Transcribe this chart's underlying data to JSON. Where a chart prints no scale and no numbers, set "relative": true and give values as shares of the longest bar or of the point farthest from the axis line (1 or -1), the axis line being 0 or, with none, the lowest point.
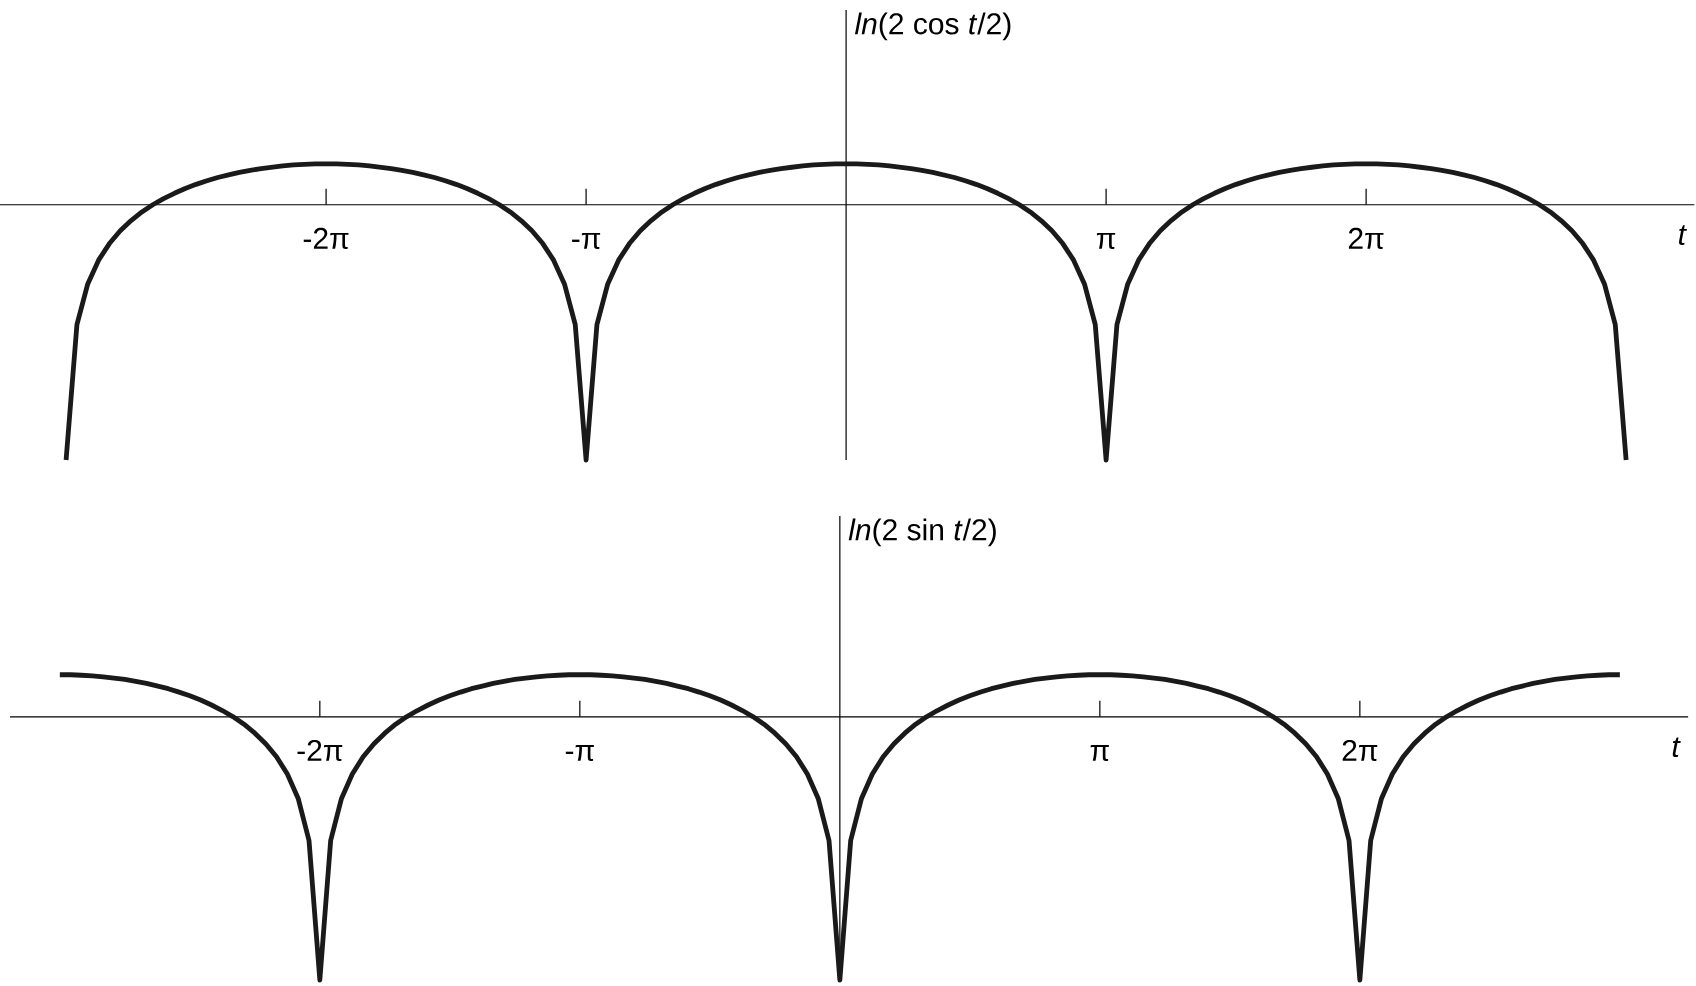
{
  "chart_data": [
    {
      "type": "line",
      "relative": true,
      "xlabel": "t",
      "ylabel": "*ln*(2 cos *t*/2)",
      "color": "#1a1a1a",
      "categories": [
        null,
        null,
        null,
        null,
        null,
        null,
        null,
        null,
        null,
        null,
        null,
        null,
        null,
        null,
        null,
        null,
        null,
        null,
        null,
        null,
        null,
        null,
        null,
        null,
        "-2π",
        null,
        null,
        null,
        null,
        null,
        null,
        null,
        null,
        null,
        null,
        null,
        null,
        null,
        null,
        null,
        null,
        null,
        null,
        null,
        null,
        null,
        null,
        null,
        "-π",
        null,
        null,
        null,
        null,
        null,
        null,
        null,
        null,
        null,
        null,
        null,
        null,
        null,
        null,
        null,
        null,
        null,
        null,
        null,
        null,
        null,
        null,
        null,
        null,
        null,
        null,
        null,
        null,
        null,
        null,
        null,
        null,
        null,
        null,
        null,
        null,
        null,
        null,
        null,
        null,
        null,
        null,
        null,
        null,
        null,
        null,
        null,
        "π",
        null,
        null,
        null,
        null,
        null,
        null,
        null,
        null,
        null,
        null,
        null,
        null,
        null,
        null,
        null,
        null,
        null,
        null,
        null,
        null,
        null,
        null,
        null,
        "2π",
        null,
        null,
        null,
        null,
        null,
        null,
        null,
        null,
        null,
        null,
        null,
        null,
        null,
        null,
        null,
        null,
        null,
        null,
        null,
        null,
        null,
        null,
        null,
        null
      ],
      "values": [
        -1,
        -0.47,
        -0.31,
        -0.217,
        -0.152,
        -0.102,
        -0.062,
        -0.028,
        0,
        0.024,
        0.045,
        0.064,
        0.08,
        0.094,
        0.107,
        0.117,
        0.127,
        0.135,
        0.142,
        0.147,
        0.152,
        0.156,
        0.158,
        0.16,
        0.16,
        0.16,
        0.158,
        0.156,
        0.152,
        0.147,
        0.142,
        0.135,
        0.127,
        0.117,
        0.107,
        0.094,
        0.08,
        0.064,
        0.045,
        0.024,
        0,
        -0.028,
        -0.062,
        -0.102,
        -0.152,
        -0.217,
        -0.31,
        -0.47,
        -1,
        -0.47,
        -0.31,
        -0.217,
        -0.152,
        -0.102,
        -0.062,
        -0.028,
        0,
        0.024,
        0.045,
        0.064,
        0.08,
        0.094,
        0.107,
        0.117,
        0.127,
        0.135,
        0.142,
        0.147,
        0.152,
        0.156,
        0.158,
        0.16,
        0.16,
        0.16,
        0.158,
        0.156,
        0.152,
        0.147,
        0.142,
        0.135,
        0.127,
        0.117,
        0.107,
        0.094,
        0.08,
        0.064,
        0.045,
        0.024,
        0,
        -0.028,
        -0.062,
        -0.102,
        -0.152,
        -0.217,
        -0.31,
        -0.47,
        -1,
        -0.47,
        -0.31,
        -0.217,
        -0.152,
        -0.102,
        -0.062,
        -0.028,
        0,
        0.024,
        0.045,
        0.064,
        0.08,
        0.094,
        0.107,
        0.117,
        0.127,
        0.135,
        0.142,
        0.147,
        0.152,
        0.156,
        0.158,
        0.16,
        0.16,
        0.16,
        0.158,
        0.156,
        0.152,
        0.147,
        0.142,
        0.135,
        0.127,
        0.117,
        0.107,
        0.094,
        0.08,
        0.064,
        0.045,
        0.024,
        0,
        -0.028,
        -0.062,
        -0.102,
        -0.152,
        -0.217,
        -0.31,
        -0.47,
        -1
      ]
    },
    {
      "type": "line",
      "relative": true,
      "xlabel": "t",
      "ylabel": "*ln*(2 sin *t*/2)",
      "color": "#1a1a1a",
      "categories": [
        null,
        null,
        null,
        null,
        null,
        null,
        null,
        null,
        null,
        null,
        null,
        null,
        null,
        null,
        null,
        null,
        null,
        null,
        null,
        null,
        null,
        null,
        null,
        null,
        "-2π",
        null,
        null,
        null,
        null,
        null,
        null,
        null,
        null,
        null,
        null,
        null,
        null,
        null,
        null,
        null,
        null,
        null,
        null,
        null,
        null,
        null,
        null,
        null,
        "-π",
        null,
        null,
        null,
        null,
        null,
        null,
        null,
        null,
        null,
        null,
        null,
        null,
        null,
        null,
        null,
        null,
        null,
        null,
        null,
        null,
        null,
        null,
        null,
        null,
        null,
        null,
        null,
        null,
        null,
        null,
        null,
        null,
        null,
        null,
        null,
        null,
        null,
        null,
        null,
        null,
        null,
        null,
        null,
        null,
        null,
        null,
        null,
        "π",
        null,
        null,
        null,
        null,
        null,
        null,
        null,
        null,
        null,
        null,
        null,
        null,
        null,
        null,
        null,
        null,
        null,
        null,
        null,
        null,
        null,
        null,
        null,
        "2π",
        null,
        null,
        null,
        null,
        null,
        null,
        null,
        null,
        null,
        null,
        null,
        null,
        null,
        null,
        null,
        null,
        null,
        null,
        null,
        null,
        null,
        null,
        null,
        null
      ],
      "values": [
        0.16,
        0.16,
        0.158,
        0.156,
        0.152,
        0.147,
        0.142,
        0.135,
        0.127,
        0.117,
        0.107,
        0.094,
        0.08,
        0.064,
        0.045,
        0.024,
        0,
        -0.028,
        -0.062,
        -0.102,
        -0.152,
        -0.217,
        -0.31,
        -0.47,
        -1,
        -0.47,
        -0.31,
        -0.217,
        -0.152,
        -0.102,
        -0.062,
        -0.028,
        0,
        0.024,
        0.045,
        0.064,
        0.08,
        0.094,
        0.107,
        0.117,
        0.127,
        0.135,
        0.142,
        0.147,
        0.152,
        0.156,
        0.158,
        0.16,
        0.16,
        0.16,
        0.158,
        0.156,
        0.152,
        0.147,
        0.142,
        0.135,
        0.127,
        0.117,
        0.107,
        0.094,
        0.08,
        0.064,
        0.045,
        0.024,
        0,
        -0.028,
        -0.062,
        -0.102,
        -0.152,
        -0.217,
        -0.31,
        -0.47,
        -1,
        -0.47,
        -0.31,
        -0.217,
        -0.152,
        -0.102,
        -0.062,
        -0.028,
        0,
        0.024,
        0.045,
        0.064,
        0.08,
        0.094,
        0.107,
        0.117,
        0.127,
        0.135,
        0.142,
        0.147,
        0.152,
        0.156,
        0.158,
        0.16,
        0.16,
        0.16,
        0.158,
        0.156,
        0.152,
        0.147,
        0.142,
        0.135,
        0.127,
        0.117,
        0.107,
        0.094,
        0.08,
        0.064,
        0.045,
        0.024,
        0,
        -0.028,
        -0.062,
        -0.102,
        -0.152,
        -0.217,
        -0.31,
        -0.47,
        -1,
        -0.47,
        -0.31,
        -0.217,
        -0.152,
        -0.102,
        -0.062,
        -0.028,
        0,
        0.024,
        0.045,
        0.064,
        0.08,
        0.094,
        0.107,
        0.117,
        0.127,
        0.135,
        0.142,
        0.147,
        0.152,
        0.156,
        0.158,
        0.16,
        0.16
      ]
    }
  ]
}
